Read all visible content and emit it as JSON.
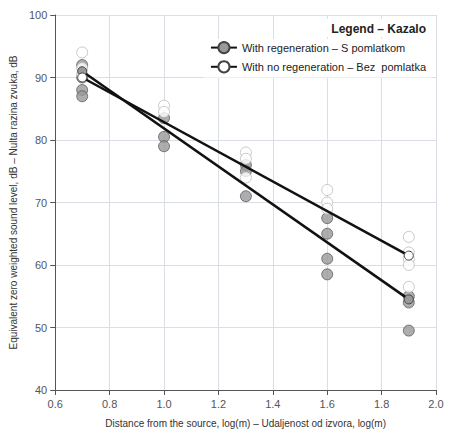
{
  "chart_data": {
    "type": "scatter",
    "xlabel": "Distance from the source, log(m) – Udaljenost od izvora, log(m)",
    "ylabel": "Equivalent zero weighted sound level, dB – Nulta razina zvuka, dB",
    "legend_title": "Legend – Kazalo",
    "xlim": [
      0.6,
      2.0
    ],
    "ylim": [
      40,
      100
    ],
    "xticks": [
      0.6,
      0.8,
      {
        "value": 1.0,
        "label": "1.0"
      },
      1.2,
      1.4,
      1.6,
      1.8,
      {
        "value": 2.0,
        "label": "2.0"
      }
    ],
    "yticks": [
      40,
      50,
      60,
      70,
      80,
      90,
      100
    ],
    "grid": true,
    "legend": "upper right",
    "series": [
      {
        "name": "With regeneration – S pomlatkom",
        "type": "line",
        "marker": "circle",
        "color": "#999999",
        "x": [
          0.699,
          1.9
        ],
        "values": [
          91.0,
          54.5
        ]
      },
      {
        "name": "With no regeneration – Bez  pomlatka",
        "type": "line",
        "marker": "circle",
        "color": "white",
        "x": [
          0.699,
          1.9
        ],
        "values": [
          90.0,
          61.5
        ]
      },
      {
        "type": "scatter",
        "marker": "circle",
        "color": "#999999",
        "x": [
          0.699,
          0.699,
          0.699,
          0.699,
          1.0,
          1.0,
          1.0,
          1.301,
          1.301,
          1.301,
          1.6,
          1.6,
          1.6,
          1.6,
          1.9,
          1.9,
          1.9
        ],
        "values": [
          92.0,
          90.0,
          88.0,
          87.0,
          83.5,
          80.5,
          79.0,
          76.0,
          75.0,
          71.0,
          67.5,
          65.0,
          61.0,
          58.5,
          55.0,
          54.0,
          49.5
        ]
      },
      {
        "type": "scatter",
        "marker": "circle",
        "color": "white",
        "x": [
          0.699,
          0.699,
          0.699,
          1.0,
          1.0,
          1.301,
          1.301,
          1.301,
          1.6,
          1.6,
          1.6,
          1.9,
          1.9,
          1.9,
          1.9,
          1.9
        ],
        "values": [
          94.0,
          91.5,
          90.5,
          85.5,
          84.5,
          78.0,
          77.0,
          74.0,
          72.0,
          70.0,
          69.0,
          64.5,
          62.0,
          61.0,
          60.0,
          56.5
        ]
      }
    ]
  }
}
